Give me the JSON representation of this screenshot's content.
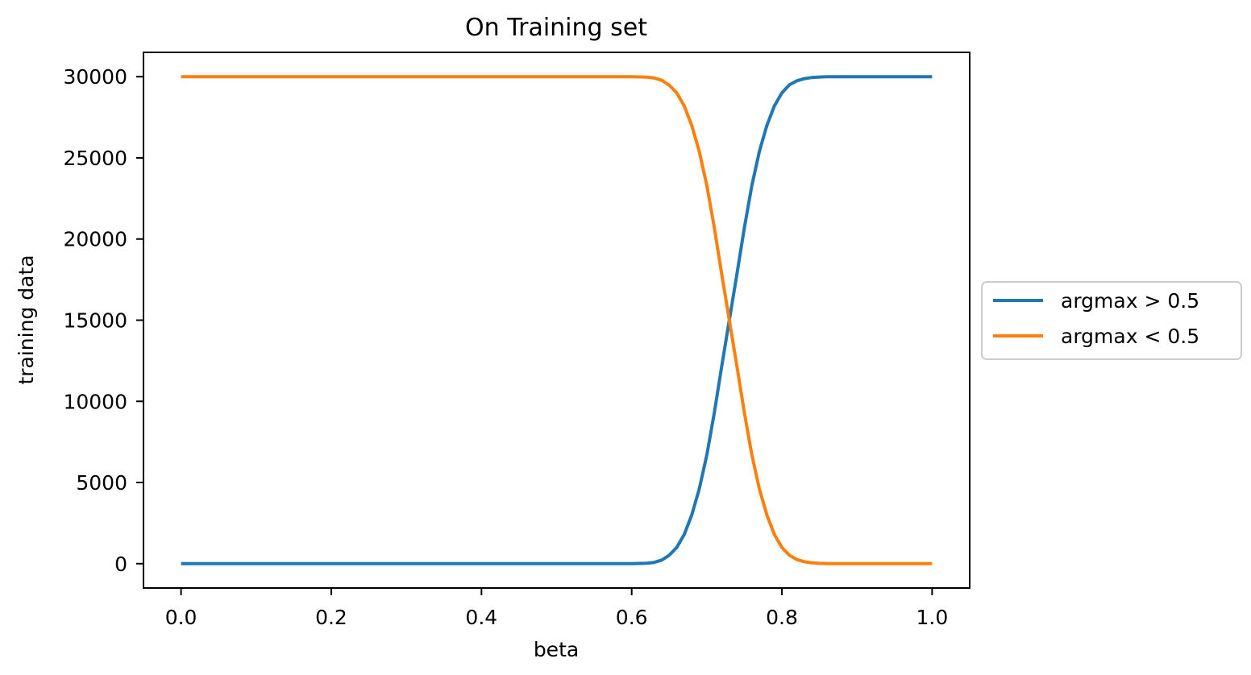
{
  "chart_data": {
    "type": "line",
    "title": "On Training set",
    "xlabel": "beta",
    "ylabel": "training data",
    "xlim": [
      -0.05,
      1.05
    ],
    "ylim": [
      -1500,
      31500
    ],
    "xticks": [
      0.0,
      0.2,
      0.4,
      0.6,
      0.8,
      1.0
    ],
    "xtick_labels": [
      "0.0",
      "0.2",
      "0.4",
      "0.6",
      "0.8",
      "1.0"
    ],
    "yticks": [
      0,
      5000,
      10000,
      15000,
      20000,
      25000,
      30000
    ],
    "ytick_labels": [
      "0",
      "5000",
      "10000",
      "15000",
      "20000",
      "25000",
      "30000"
    ],
    "grid": false,
    "legend_position": "outside-right",
    "x": [
      0.0,
      0.58,
      0.6,
      0.62,
      0.63,
      0.64,
      0.65,
      0.66,
      0.67,
      0.68,
      0.69,
      0.7,
      0.71,
      0.72,
      0.73,
      0.74,
      0.75,
      0.76,
      0.77,
      0.78,
      0.79,
      0.8,
      0.81,
      0.82,
      0.83,
      0.84,
      0.85,
      0.86,
      0.87,
      0.88,
      0.9,
      1.0
    ],
    "series": [
      {
        "name": "argmax > 0.5",
        "color": "#1f77b4",
        "values": [
          0,
          0,
          5,
          30,
          80,
          220,
          520,
          1000,
          1800,
          3000,
          4600,
          6700,
          9300,
          12200,
          15000,
          17800,
          20700,
          23300,
          25400,
          27000,
          28200,
          29000,
          29500,
          29750,
          29880,
          29950,
          29980,
          29995,
          29998,
          30000,
          30000,
          30000
        ]
      },
      {
        "name": "argmax < 0.5",
        "color": "#ff7f0e",
        "values": [
          30000,
          30000,
          29995,
          29970,
          29920,
          29780,
          29480,
          29000,
          28200,
          27000,
          25400,
          23300,
          20700,
          17800,
          15000,
          12200,
          9300,
          6700,
          4600,
          3000,
          1800,
          1000,
          520,
          250,
          120,
          50,
          20,
          5,
          2,
          0,
          0,
          0
        ]
      }
    ]
  }
}
